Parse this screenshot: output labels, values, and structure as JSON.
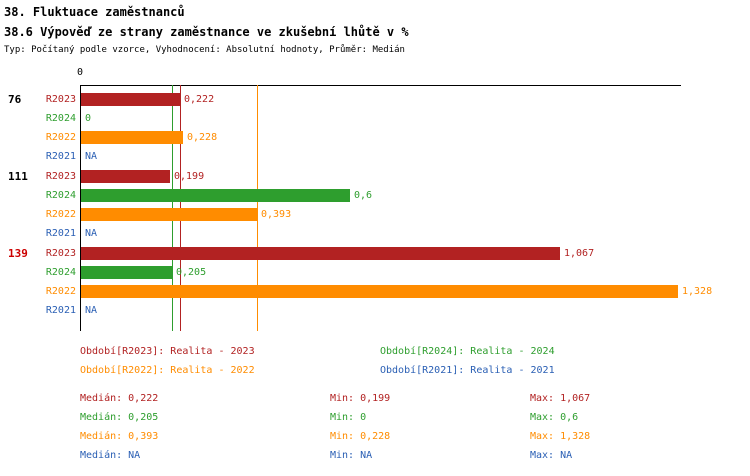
{
  "header": {
    "title": "38. Fluktuace zaměstnanců",
    "subtitle": "38.6 Výpověď ze strany zaměstnance ve zkušební lhůtě v %",
    "meta": "Typ: Počítaný podle vzorce, Vyhodnocení: Absolutní hodnoty, Průměr: Medián"
  },
  "chart_data": {
    "type": "bar",
    "orientation": "horizontal",
    "value_axis": {
      "zero_label": "0",
      "min": 0,
      "max_value_shown": 1.328
    },
    "stats_labels": {
      "median": "Medián",
      "min": "Min",
      "max": "Max"
    },
    "series": [
      {
        "id": "R2023",
        "color": "#b22222",
        "legend_label": "Období[R2023]: Realita - 2023",
        "median_value": 0.222,
        "median": "0,222",
        "min": "0,199",
        "max": "1,067"
      },
      {
        "id": "R2024",
        "color": "#2e9e2e",
        "legend_label": "Období[R2024]: Realita - 2024",
        "median_value": 0.205,
        "median": "0,205",
        "min": "0",
        "max": "0,6"
      },
      {
        "id": "R2022",
        "color": "#ff8c00",
        "legend_label": "Období[R2022]: Realita - 2022",
        "median_value": 0.393,
        "median": "0,393",
        "min": "0,228",
        "max": "1,328"
      },
      {
        "id": "R2021",
        "color": "#2a5fb4",
        "legend_label": "Období[R2021]: Realita - 2021",
        "median_value": null,
        "median": "NA",
        "min": "NA",
        "max": "NA"
      }
    ],
    "groups": [
      {
        "label": "76",
        "label_color": "#000000",
        "values": [
          {
            "series": "R2023",
            "value": 0.222,
            "display": "0,222"
          },
          {
            "series": "R2024",
            "value": 0,
            "display": "0"
          },
          {
            "series": "R2022",
            "value": 0.228,
            "display": "0,228"
          },
          {
            "series": "R2021",
            "value": null,
            "display": "NA"
          }
        ]
      },
      {
        "label": "111",
        "label_color": "#000000",
        "values": [
          {
            "series": "R2023",
            "value": 0.199,
            "display": "0,199"
          },
          {
            "series": "R2024",
            "value": 0.6,
            "display": "0,6"
          },
          {
            "series": "R2022",
            "value": 0.393,
            "display": "0,393"
          },
          {
            "series": "R2021",
            "value": null,
            "display": "NA"
          }
        ]
      },
      {
        "label": "139",
        "label_color": "#cc0000",
        "values": [
          {
            "series": "R2023",
            "value": 1.067,
            "display": "1,067"
          },
          {
            "series": "R2024",
            "value": 0.205,
            "display": "0,205"
          },
          {
            "series": "R2022",
            "value": 1.328,
            "display": "1,328"
          },
          {
            "series": "R2021",
            "value": null,
            "display": "NA"
          }
        ]
      }
    ]
  }
}
